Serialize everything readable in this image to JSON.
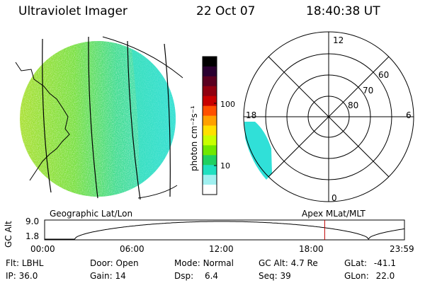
{
  "header": {
    "title": "Ultraviolet Imager",
    "date": "22 Oct 07",
    "time": "18:40:38 UT"
  },
  "colorbar": {
    "label": "photon cm⁻²s⁻¹",
    "ticks": [
      {
        "label": "100",
        "value": 100
      },
      {
        "label": "10",
        "value": 10
      }
    ],
    "colors": [
      "#000000",
      "#2a0030",
      "#5a0020",
      "#900010",
      "#c80000",
      "#ff5000",
      "#ffa000",
      "#ffe000",
      "#c8ff00",
      "#70e800",
      "#20d060",
      "#20e0c0",
      "#a0f0f0",
      "#ffffff"
    ]
  },
  "polar_plot": {
    "mlt_labels": [
      {
        "label": "12",
        "pos": "top"
      },
      {
        "label": "18",
        "pos": "left"
      },
      {
        "label": "6",
        "pos": "right"
      },
      {
        "label": "0",
        "pos": "bottom"
      }
    ],
    "lat_labels": [
      "60",
      "70",
      "80"
    ],
    "colors": {
      "aurora": "#30e0d8"
    }
  },
  "map_panel": {
    "left_label": "Geographic Lat/Lon",
    "right_label": "Apex MLat/MLT",
    "colors": {
      "disk": "#70e040",
      "dayside": "#30e0d0"
    }
  },
  "altitude_plot": {
    "ylabel": "GC Alt",
    "y_ticks": [
      "9.0",
      "1.8"
    ],
    "x_ticks": [
      "00:00",
      "06:00",
      "12:00",
      "18:00",
      "23:59"
    ],
    "current_time_hours": 18.68,
    "marker_color": "#c00000"
  },
  "status": {
    "row1": [
      {
        "label": "Flt:",
        "value": "LBHL"
      },
      {
        "label": "Door:",
        "value": "Open"
      },
      {
        "label": "Mode:",
        "value": "Normal"
      },
      {
        "label": "GC Alt:",
        "value": "4.7 Re"
      },
      {
        "label": "GLat:",
        "value": "-41.1"
      }
    ],
    "row2": [
      {
        "label": "IP:",
        "value": "36.0"
      },
      {
        "label": "Gain:",
        "value": "14"
      },
      {
        "label": "Dsp:",
        "value": "6.4"
      },
      {
        "label": "Seq:",
        "value": "39"
      },
      {
        "label": "GLon:",
        "value": "22.0"
      }
    ]
  }
}
